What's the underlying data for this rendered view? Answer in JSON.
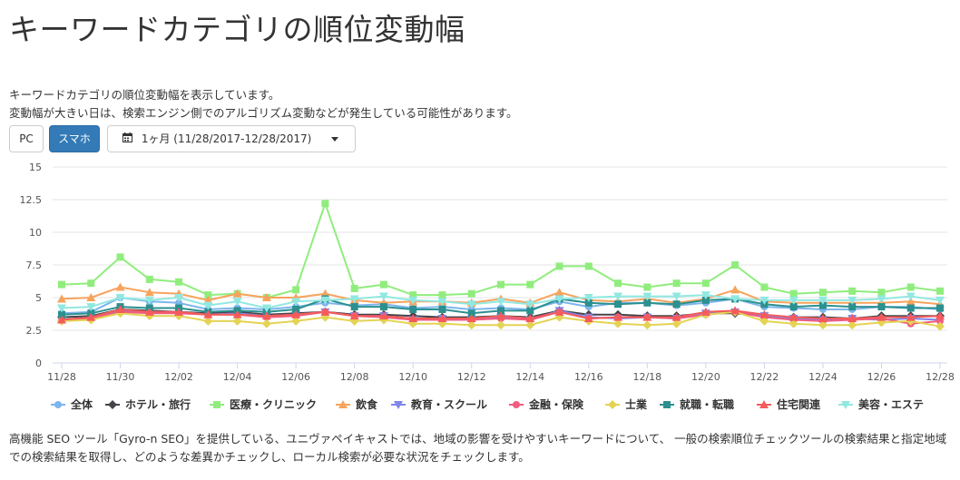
{
  "page": {
    "title": "キーワードカテゴリの順位変動幅",
    "description_1": "キーワードカテゴリの順位変動幅を表示しています。",
    "description_2": "変動幅が大きい日は、検索エンジン側でのアルゴリズム変動などが発生している可能性があります。",
    "footer": "高機能 SEO ツール「Gyro-n SEO」を提供している、ユニヴァペイキャストでは、地域の影響を受けやすいキーワードについて、 一般の検索順位チェックツールの検索結果と指定地域での検索結果を取得し、どのような差異かチェックし、ローカル検索が必要な状況をチェックします。"
  },
  "controls": {
    "pc_label": "PC",
    "sp_label": "スマホ",
    "range_label": "1ヶ月 (11/28/2017-12/28/2017)",
    "active": "スマホ",
    "active_color": "#337ab7",
    "calendar_icon": "calendar-icon"
  },
  "chart_data": {
    "type": "line",
    "x": [
      "11/28",
      "11/29",
      "11/30",
      "12/01",
      "12/02",
      "12/03",
      "12/04",
      "12/05",
      "12/06",
      "12/07",
      "12/08",
      "12/09",
      "12/10",
      "12/11",
      "12/12",
      "12/13",
      "12/14",
      "12/15",
      "12/16",
      "12/17",
      "12/18",
      "12/19",
      "12/20",
      "12/21",
      "12/22",
      "12/23",
      "12/24",
      "12/25",
      "12/26",
      "12/27",
      "12/28"
    ],
    "x_ticks": [
      "11/28",
      "11/30",
      "12/02",
      "12/04",
      "12/06",
      "12/08",
      "12/10",
      "12/12",
      "12/14",
      "12/16",
      "12/18",
      "12/20",
      "12/22",
      "12/24",
      "12/26",
      "12/28"
    ],
    "ylim": [
      0,
      15
    ],
    "y_ticks": [
      "0",
      "2.5",
      "5",
      "7.5",
      "10",
      "12.5",
      "15"
    ],
    "grid": true,
    "legend_position": "bottom",
    "series": [
      {
        "name": "全体",
        "color": "#7cb5ec",
        "marker": "circle",
        "values": [
          3.8,
          3.9,
          5.0,
          4.7,
          4.6,
          4.1,
          4.2,
          4.1,
          4.3,
          4.6,
          4.4,
          4.5,
          4.2,
          4.3,
          4.1,
          4.2,
          4.1,
          4.7,
          4.3,
          4.6,
          4.6,
          4.4,
          4.6,
          4.9,
          4.3,
          4.2,
          4.1,
          4.1,
          4.3,
          4.3,
          4.1
        ]
      },
      {
        "name": "ホテル・旅行",
        "color": "#434348",
        "marker": "diamond",
        "values": [
          3.5,
          3.6,
          4.1,
          4.0,
          3.9,
          3.8,
          3.9,
          3.7,
          3.8,
          3.9,
          3.7,
          3.7,
          3.6,
          3.5,
          3.5,
          3.6,
          3.5,
          4.0,
          3.7,
          3.7,
          3.6,
          3.6,
          3.8,
          3.8,
          3.6,
          3.5,
          3.5,
          3.4,
          3.6,
          3.6,
          3.6
        ]
      },
      {
        "name": "医療・クリニック",
        "color": "#90ed7d",
        "marker": "square",
        "values": [
          6.0,
          6.1,
          8.1,
          6.4,
          6.2,
          5.2,
          5.3,
          5.0,
          5.6,
          12.2,
          5.7,
          6.0,
          5.2,
          5.2,
          5.3,
          6.0,
          6.0,
          7.4,
          7.4,
          6.1,
          5.8,
          6.1,
          6.1,
          7.5,
          5.8,
          5.3,
          5.4,
          5.5,
          5.4,
          5.8,
          5.5
        ]
      },
      {
        "name": "飲食",
        "color": "#f7a35c",
        "marker": "triangle",
        "values": [
          4.9,
          5.0,
          5.8,
          5.4,
          5.3,
          4.8,
          5.3,
          5.0,
          5.0,
          5.3,
          4.8,
          4.6,
          4.7,
          4.7,
          4.6,
          4.9,
          4.6,
          5.4,
          4.8,
          4.7,
          4.9,
          4.6,
          4.9,
          5.6,
          4.7,
          4.6,
          4.6,
          4.6,
          4.6,
          4.7,
          4.5
        ]
      },
      {
        "name": "教育・スクール",
        "color": "#8085e9",
        "marker": "triangle-down",
        "values": [
          3.3,
          3.5,
          4.0,
          3.9,
          3.9,
          3.7,
          3.8,
          3.6,
          3.7,
          3.9,
          3.6,
          3.6,
          3.3,
          3.4,
          3.3,
          3.5,
          3.3,
          4.0,
          3.5,
          3.4,
          3.5,
          3.4,
          3.8,
          3.9,
          3.6,
          3.4,
          3.3,
          3.4,
          3.3,
          3.4,
          3.3
        ]
      },
      {
        "name": "金融・保険",
        "color": "#f15c80",
        "marker": "circle",
        "values": [
          3.3,
          3.4,
          3.9,
          3.8,
          3.8,
          3.7,
          3.7,
          3.5,
          3.6,
          3.9,
          3.6,
          3.5,
          3.3,
          3.3,
          3.3,
          3.4,
          3.3,
          3.9,
          3.4,
          3.5,
          3.5,
          3.4,
          3.7,
          3.9,
          3.5,
          3.3,
          3.2,
          3.3,
          3.4,
          3.0,
          3.2
        ]
      },
      {
        "name": "士業",
        "color": "#e4d354",
        "marker": "diamond",
        "values": [
          3.2,
          3.3,
          3.8,
          3.6,
          3.6,
          3.2,
          3.2,
          3.0,
          3.2,
          3.5,
          3.2,
          3.3,
          3.0,
          3.0,
          2.9,
          2.9,
          2.9,
          3.5,
          3.2,
          3.0,
          2.9,
          3.0,
          3.7,
          3.9,
          3.2,
          3.0,
          2.9,
          2.9,
          3.1,
          3.2,
          2.8
        ]
      },
      {
        "name": "就職・転職",
        "color": "#2b908f",
        "marker": "square",
        "values": [
          3.7,
          3.8,
          4.3,
          4.2,
          4.2,
          3.9,
          4.0,
          3.9,
          4.1,
          4.9,
          4.3,
          4.3,
          4.1,
          4.1,
          3.8,
          4.0,
          4.0,
          4.9,
          4.6,
          4.5,
          4.6,
          4.5,
          4.8,
          4.9,
          4.5,
          4.3,
          4.4,
          4.3,
          4.3,
          4.2,
          4.2
        ]
      },
      {
        "name": "住宅関連",
        "color": "#f45b5b",
        "marker": "triangle",
        "values": [
          3.3,
          3.5,
          4.1,
          3.9,
          3.9,
          3.7,
          3.7,
          3.6,
          3.7,
          3.9,
          3.6,
          3.6,
          3.4,
          3.4,
          3.4,
          3.6,
          3.4,
          3.9,
          3.4,
          3.5,
          3.5,
          3.5,
          3.9,
          4.0,
          3.7,
          3.5,
          3.4,
          3.4,
          3.5,
          3.5,
          3.6
        ]
      },
      {
        "name": "美容・エステ",
        "color": "#91e8e1",
        "marker": "triangle-down",
        "values": [
          4.2,
          4.3,
          5.0,
          4.8,
          5.0,
          4.4,
          4.7,
          4.2,
          4.7,
          4.8,
          4.9,
          5.1,
          4.8,
          4.7,
          4.5,
          4.7,
          4.5,
          4.9,
          5.0,
          5.1,
          5.1,
          5.1,
          5.2,
          4.9,
          4.8,
          4.8,
          4.8,
          4.8,
          4.9,
          5.1,
          4.8
        ]
      }
    ]
  }
}
